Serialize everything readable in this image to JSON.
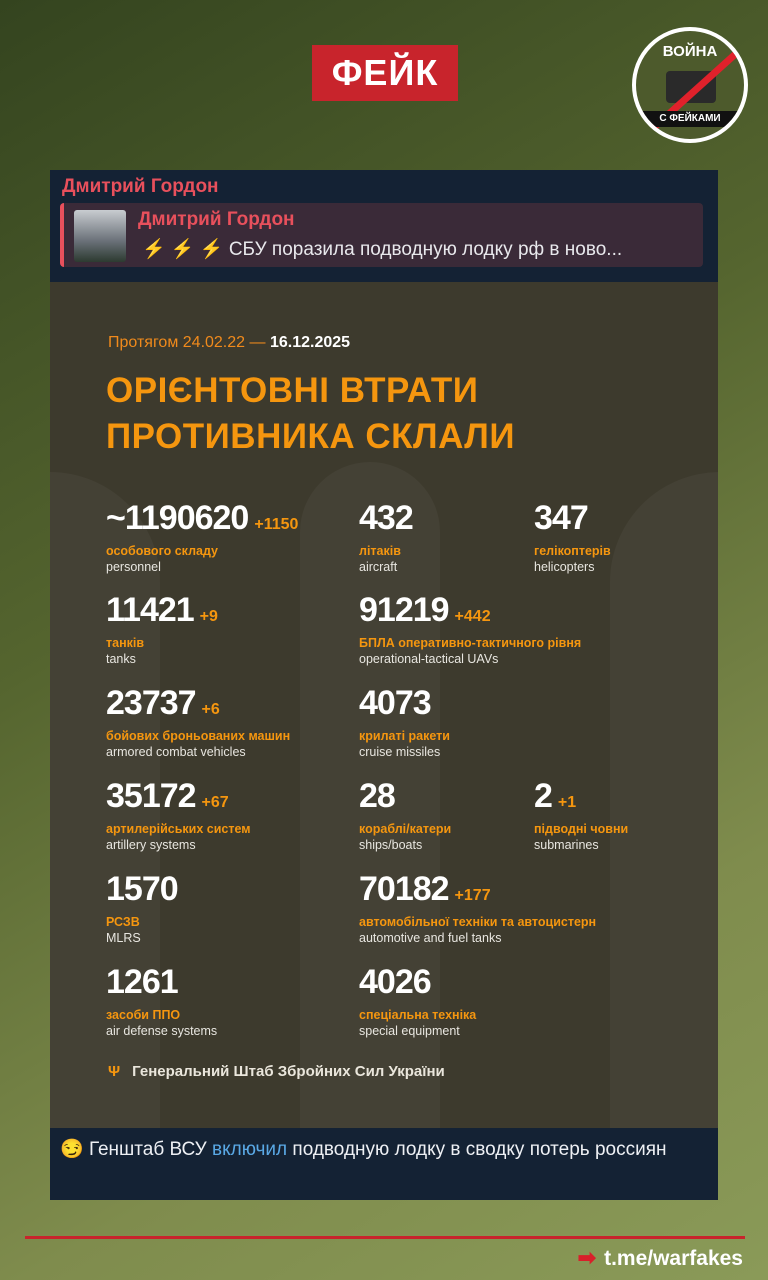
{
  "badge": "ФЕЙК",
  "logo": {
    "top": "ВОЙНА",
    "bottom": "С ФЕЙКАМИ"
  },
  "post": {
    "channel": "Дмитрий Гордон",
    "reply": {
      "channel": "Дмитрий Гордон",
      "bolts": "⚡ ⚡ ⚡",
      "text": "СБУ поразила подводную лодку рф в ново..."
    },
    "caption": {
      "emoji": "😏",
      "pre": "Генштаб ВСУ",
      "link": "включил",
      "post": "подводную лодку в сводку потерь россиян"
    }
  },
  "infographic": {
    "period_prefix": "Протягом 24.02.22 —",
    "period_end": "16.12.2025",
    "title_line1": "ОРІЄНТОВНІ ВТРАТИ",
    "title_line2": "ПРОТИВНИКА СКЛАЛИ",
    "stats": [
      {
        "value": "~1190620",
        "delta": "+1150",
        "ua": "особового складу",
        "en": "personnel"
      },
      {
        "value": "432",
        "delta": "",
        "ua": "літаків",
        "en": "aircraft"
      },
      {
        "value": "347",
        "delta": "",
        "ua": "гелікоптерів",
        "en": "helicopters"
      },
      {
        "value": "11421",
        "delta": "+9",
        "ua": "танків",
        "en": "tanks"
      },
      {
        "value": "91219",
        "delta": "+442",
        "ua": "БПЛА оперативно-тактичного рівня",
        "en": "operational-tactical UAVs"
      },
      {
        "value": "23737",
        "delta": "+6",
        "ua": "бойових броньованих машин",
        "en": "armored combat vehicles"
      },
      {
        "value": "4073",
        "delta": "",
        "ua": "крилаті ракети",
        "en": "cruise missiles"
      },
      {
        "value": "35172",
        "delta": "+67",
        "ua": "артилерійських систем",
        "en": "artillery systems"
      },
      {
        "value": "28",
        "delta": "",
        "ua": "кораблі/катери",
        "en": "ships/boats"
      },
      {
        "value": "2",
        "delta": "+1",
        "ua": "підводні човни",
        "en": "submarines"
      },
      {
        "value": "1570",
        "delta": "",
        "ua": "РСЗВ",
        "en": "MLRS"
      },
      {
        "value": "70182",
        "delta": "+177",
        "ua": "автомобільної техніки та автоцистерн",
        "en": "automotive and fuel tanks"
      },
      {
        "value": "1261",
        "delta": "",
        "ua": "засоби ППО",
        "en": "air defense systems"
      },
      {
        "value": "4026",
        "delta": "",
        "ua": "спеціальна техніка",
        "en": "special equipment"
      }
    ],
    "source": "Генеральний Штаб Збройних Сил України"
  },
  "footer": {
    "link": "t.me/warfakes"
  },
  "colors": {
    "fake_red": "#c8242c",
    "accent_orange": "#f5960f",
    "channel_pink": "#e8505c",
    "link_blue": "#5aa9e6"
  }
}
